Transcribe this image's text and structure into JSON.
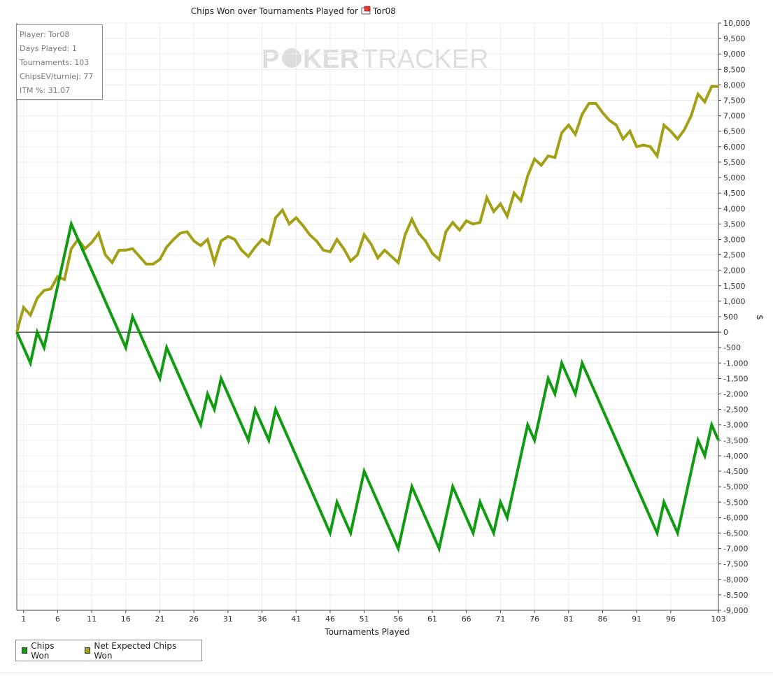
{
  "title_prefix": "Chips Won over Tournaments Played for",
  "player_name": "Tor08",
  "watermark": {
    "left": "P",
    "mid": "KER",
    "right": "TRACKER"
  },
  "stats": {
    "player": "Player: Tor08",
    "days": "Days Played: 1",
    "tournaments": "Tournaments: 103",
    "chipsev": "ChipsEV/turniej: 77",
    "itm": "ITM %: 31.07"
  },
  "legend": {
    "chips_won": "Chips Won",
    "net_expected": "Net Expected Chips Won"
  },
  "colors": {
    "chips_won": "#109c10",
    "net_expected": "#a3a016",
    "grid": "#ececec"
  },
  "chart_data": {
    "type": "line",
    "title": "Chips Won over Tournaments Played for Tor08",
    "xlabel": "Tournaments Played",
    "ylabel": "$",
    "xlim": [
      0,
      103
    ],
    "ylim": [
      -9000,
      10000
    ],
    "x_ticks": [
      1,
      6,
      11,
      16,
      21,
      26,
      31,
      36,
      41,
      46,
      51,
      56,
      61,
      66,
      71,
      76,
      81,
      86,
      91,
      96,
      103
    ],
    "y_ticks": [
      10000,
      9500,
      9000,
      8500,
      8000,
      7500,
      7000,
      6500,
      6000,
      5500,
      5000,
      4500,
      4000,
      3500,
      3000,
      2500,
      2000,
      1500,
      1000,
      500,
      0,
      -500,
      -1000,
      -1500,
      -2000,
      -2500,
      -3000,
      -3500,
      -4000,
      -4500,
      -5000,
      -5500,
      -6000,
      -6500,
      -7000,
      -7500,
      -8000,
      -8500,
      -9000
    ],
    "grid": true,
    "legend_position": "bottom-left",
    "series": [
      {
        "name": "Chips Won",
        "points": [
          [
            0,
            0
          ],
          [
            2,
            -1000
          ],
          [
            3,
            0
          ],
          [
            4,
            -500
          ],
          [
            8,
            3500
          ],
          [
            16,
            -500
          ],
          [
            17,
            500
          ],
          [
            21,
            -1500
          ],
          [
            22,
            -500
          ],
          [
            27,
            -3000
          ],
          [
            28,
            -2000
          ],
          [
            29,
            -2500
          ],
          [
            30,
            -1500
          ],
          [
            34,
            -3500
          ],
          [
            35,
            -2500
          ],
          [
            37,
            -3500
          ],
          [
            38,
            -2500
          ],
          [
            46,
            -6500
          ],
          [
            47,
            -5500
          ],
          [
            49,
            -6500
          ],
          [
            51,
            -4500
          ],
          [
            56,
            -7000
          ],
          [
            58,
            -5000
          ],
          [
            62,
            -7000
          ],
          [
            64,
            -5000
          ],
          [
            67,
            -6500
          ],
          [
            68,
            -5500
          ],
          [
            70,
            -6500
          ],
          [
            71,
            -5500
          ],
          [
            72,
            -6000
          ],
          [
            75,
            -3000
          ],
          [
            76,
            -3500
          ],
          [
            78,
            -1500
          ],
          [
            79,
            -2000
          ],
          [
            80,
            -1000
          ],
          [
            82,
            -2000
          ],
          [
            83,
            -1000
          ],
          [
            94,
            -6500
          ],
          [
            95,
            -5500
          ],
          [
            97,
            -6500
          ],
          [
            100,
            -3500
          ],
          [
            101,
            -4000
          ],
          [
            102,
            -3000
          ],
          [
            103,
            -3500
          ]
        ]
      },
      {
        "name": "Net Expected Chips Won",
        "points": [
          [
            0,
            0
          ],
          [
            1,
            800
          ],
          [
            2,
            550
          ],
          [
            3,
            1100
          ],
          [
            4,
            1350
          ],
          [
            5,
            1400
          ],
          [
            6,
            1800
          ],
          [
            7,
            1700
          ],
          [
            8,
            2700
          ],
          [
            9,
            3000
          ],
          [
            10,
            2700
          ],
          [
            11,
            2900
          ],
          [
            12,
            3200
          ],
          [
            13,
            2500
          ],
          [
            14,
            2250
          ],
          [
            15,
            2650
          ],
          [
            16,
            2650
          ],
          [
            17,
            2700
          ],
          [
            18,
            2450
          ],
          [
            19,
            2200
          ],
          [
            20,
            2200
          ],
          [
            21,
            2350
          ],
          [
            22,
            2750
          ],
          [
            23,
            3000
          ],
          [
            24,
            3200
          ],
          [
            25,
            3250
          ],
          [
            26,
            2950
          ],
          [
            27,
            2800
          ],
          [
            28,
            3000
          ],
          [
            29,
            2250
          ],
          [
            30,
            2950
          ],
          [
            31,
            3100
          ],
          [
            32,
            3000
          ],
          [
            33,
            2650
          ],
          [
            34,
            2450
          ],
          [
            35,
            2750
          ],
          [
            36,
            3000
          ],
          [
            37,
            2850
          ],
          [
            38,
            3700
          ],
          [
            39,
            3950
          ],
          [
            40,
            3500
          ],
          [
            41,
            3700
          ],
          [
            42,
            3450
          ],
          [
            43,
            3150
          ],
          [
            44,
            2950
          ],
          [
            45,
            2650
          ],
          [
            46,
            2600
          ],
          [
            47,
            3000
          ],
          [
            48,
            2700
          ],
          [
            49,
            2300
          ],
          [
            50,
            2500
          ],
          [
            51,
            3150
          ],
          [
            52,
            2850
          ],
          [
            53,
            2400
          ],
          [
            54,
            2650
          ],
          [
            55,
            2450
          ],
          [
            56,
            2250
          ],
          [
            57,
            3150
          ],
          [
            58,
            3650
          ],
          [
            59,
            3200
          ],
          [
            60,
            2950
          ],
          [
            61,
            2550
          ],
          [
            62,
            2350
          ],
          [
            63,
            3250
          ],
          [
            64,
            3550
          ],
          [
            65,
            3300
          ],
          [
            66,
            3600
          ],
          [
            67,
            3500
          ],
          [
            68,
            3550
          ],
          [
            69,
            4350
          ],
          [
            70,
            3900
          ],
          [
            71,
            4150
          ],
          [
            72,
            3750
          ],
          [
            73,
            4500
          ],
          [
            74,
            4250
          ],
          [
            75,
            5050
          ],
          [
            76,
            5600
          ],
          [
            77,
            5400
          ],
          [
            78,
            5700
          ],
          [
            79,
            5650
          ],
          [
            80,
            6450
          ],
          [
            81,
            6700
          ],
          [
            82,
            6400
          ],
          [
            83,
            7050
          ],
          [
            84,
            7400
          ],
          [
            85,
            7400
          ],
          [
            86,
            7100
          ],
          [
            87,
            6850
          ],
          [
            88,
            6700
          ],
          [
            89,
            6250
          ],
          [
            90,
            6500
          ],
          [
            91,
            6000
          ],
          [
            92,
            6050
          ],
          [
            93,
            6000
          ],
          [
            94,
            5700
          ],
          [
            95,
            6700
          ],
          [
            96,
            6500
          ],
          [
            97,
            6250
          ],
          [
            98,
            6550
          ],
          [
            99,
            7000
          ],
          [
            100,
            7700
          ],
          [
            101,
            7450
          ],
          [
            102,
            7950
          ],
          [
            103,
            7950
          ]
        ]
      }
    ]
  }
}
